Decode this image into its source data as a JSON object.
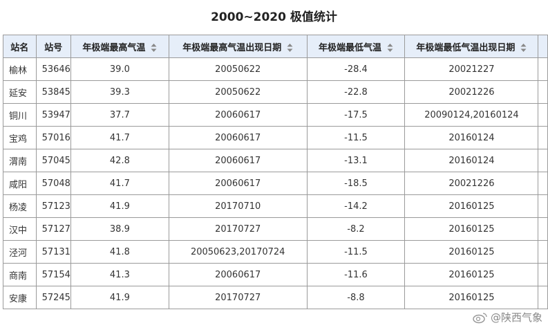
{
  "title": "2000~2020 极值统计",
  "table": {
    "headers": [
      "站名",
      "站号",
      "年极端最高气温",
      "年极端最高气温出现日期",
      "年极端最低气温",
      "年极端最低气温出现日期"
    ],
    "rows": [
      [
        "榆林",
        "53646",
        "39.0",
        "20050622",
        "-28.4",
        "20021227"
      ],
      [
        "延安",
        "53845",
        "39.3",
        "20050622",
        "-22.8",
        "20021226"
      ],
      [
        "铜川",
        "53947",
        "37.7",
        "20060617",
        "-17.5",
        "20090124,20160124"
      ],
      [
        "宝鸡",
        "57016",
        "41.7",
        "20060617",
        "-11.5",
        "20160124"
      ],
      [
        "渭南",
        "57045",
        "42.8",
        "20060617",
        "-13.1",
        "20160124"
      ],
      [
        "咸阳",
        "57048",
        "41.7",
        "20060617",
        "-18.5",
        "20021226"
      ],
      [
        "杨凌",
        "57123",
        "41.9",
        "20170710",
        "-14.2",
        "20160125"
      ],
      [
        "汉中",
        "57127",
        "38.9",
        "20170727",
        "-8.2",
        "20160125"
      ],
      [
        "泾河",
        "57131",
        "41.8",
        "20050623,20170724",
        "-11.5",
        "20160125"
      ],
      [
        "商南",
        "57154",
        "41.3",
        "20060617",
        "-11.6",
        "20160125"
      ],
      [
        "安康",
        "57245",
        "41.9",
        "20170727",
        "-8.8",
        "20160125"
      ]
    ]
  },
  "watermark": "@陕西气象"
}
